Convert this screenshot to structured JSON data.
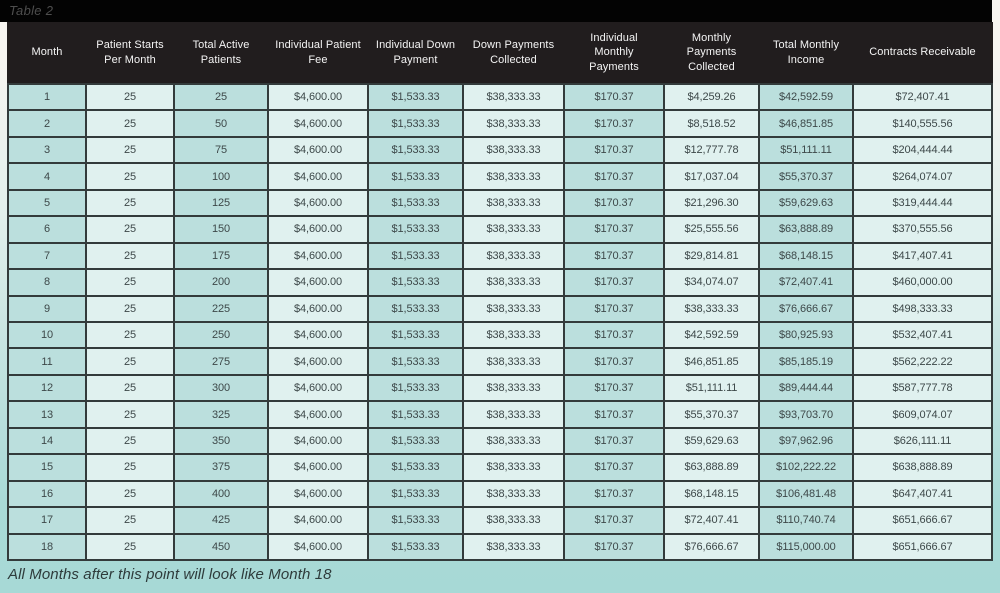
{
  "table_label": "Table 2",
  "footer_note": "All Months after this point will look like Month 18",
  "chart_data": {
    "type": "table",
    "title": "Table 2",
    "columns": [
      "Month",
      "Patient Starts\nPer Month",
      "Total Active\nPatients",
      "Individual Patient\nFee",
      "Individual Down\nPayment",
      "Down Payments\nCollected",
      "Individual\nMonthly\nPayments",
      "Monthly\nPayments\nCollected",
      "Total Monthly\nIncome",
      "Contracts Receivable"
    ],
    "rows": [
      [
        "1",
        "25",
        "25",
        "$4,600.00",
        "$1,533.33",
        "$38,333.33",
        "$170.37",
        "$4,259.26",
        "$42,592.59",
        "$72,407.41"
      ],
      [
        "2",
        "25",
        "50",
        "$4,600.00",
        "$1,533.33",
        "$38,333.33",
        "$170.37",
        "$8,518.52",
        "$46,851.85",
        "$140,555.56"
      ],
      [
        "3",
        "25",
        "75",
        "$4,600.00",
        "$1,533.33",
        "$38,333.33",
        "$170.37",
        "$12,777.78",
        "$51,111.11",
        "$204,444.44"
      ],
      [
        "4",
        "25",
        "100",
        "$4,600.00",
        "$1,533.33",
        "$38,333.33",
        "$170.37",
        "$17,037.04",
        "$55,370.37",
        "$264,074.07"
      ],
      [
        "5",
        "25",
        "125",
        "$4,600.00",
        "$1,533.33",
        "$38,333.33",
        "$170.37",
        "$21,296.30",
        "$59,629.63",
        "$319,444.44"
      ],
      [
        "6",
        "25",
        "150",
        "$4,600.00",
        "$1,533.33",
        "$38,333.33",
        "$170.37",
        "$25,555.56",
        "$63,888.89",
        "$370,555.56"
      ],
      [
        "7",
        "25",
        "175",
        "$4,600.00",
        "$1,533.33",
        "$38,333.33",
        "$170.37",
        "$29,814.81",
        "$68,148.15",
        "$417,407.41"
      ],
      [
        "8",
        "25",
        "200",
        "$4,600.00",
        "$1,533.33",
        "$38,333.33",
        "$170.37",
        "$34,074.07",
        "$72,407.41",
        "$460,000.00"
      ],
      [
        "9",
        "25",
        "225",
        "$4,600.00",
        "$1,533.33",
        "$38,333.33",
        "$170.37",
        "$38,333.33",
        "$76,666.67",
        "$498,333.33"
      ],
      [
        "10",
        "25",
        "250",
        "$4,600.00",
        "$1,533.33",
        "$38,333.33",
        "$170.37",
        "$42,592.59",
        "$80,925.93",
        "$532,407.41"
      ],
      [
        "11",
        "25",
        "275",
        "$4,600.00",
        "$1,533.33",
        "$38,333.33",
        "$170.37",
        "$46,851.85",
        "$85,185.19",
        "$562,222.22"
      ],
      [
        "12",
        "25",
        "300",
        "$4,600.00",
        "$1,533.33",
        "$38,333.33",
        "$170.37",
        "$51,111.11",
        "$89,444.44",
        "$587,777.78"
      ],
      [
        "13",
        "25",
        "325",
        "$4,600.00",
        "$1,533.33",
        "$38,333.33",
        "$170.37",
        "$55,370.37",
        "$93,703.70",
        "$609,074.07"
      ],
      [
        "14",
        "25",
        "350",
        "$4,600.00",
        "$1,533.33",
        "$38,333.33",
        "$170.37",
        "$59,629.63",
        "$97,962.96",
        "$626,111.11"
      ],
      [
        "15",
        "25",
        "375",
        "$4,600.00",
        "$1,533.33",
        "$38,333.33",
        "$170.37",
        "$63,888.89",
        "$102,222.22",
        "$638,888.89"
      ],
      [
        "16",
        "25",
        "400",
        "$4,600.00",
        "$1,533.33",
        "$38,333.33",
        "$170.37",
        "$68,148.15",
        "$106,481.48",
        "$647,407.41"
      ],
      [
        "17",
        "25",
        "425",
        "$4,600.00",
        "$1,533.33",
        "$38,333.33",
        "$170.37",
        "$72,407.41",
        "$110,740.74",
        "$651,666.67"
      ],
      [
        "18",
        "25",
        "450",
        "$4,600.00",
        "$1,533.33",
        "$38,333.33",
        "$170.37",
        "$76,666.67",
        "$115,000.00",
        "$651,666.67"
      ]
    ],
    "note": "All Months after this point will look like Month 18"
  },
  "colors": {
    "top_band": "#030303",
    "header_bg": "#211d1e",
    "header_text": "#f4f4f4",
    "grid_line": "#333b3b",
    "column_dark": "#bbdfdd",
    "column_light": "#e0f1ef",
    "cell_text": "#3d4849",
    "page_top": "#f7f5f1",
    "page_bottom": "#a7d9d6"
  }
}
